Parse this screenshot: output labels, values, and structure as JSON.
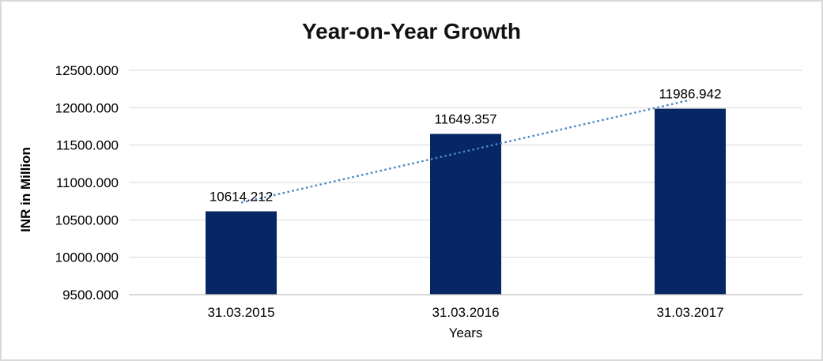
{
  "window": {
    "background": "#ffffff",
    "border_color": "#d9d9d9"
  },
  "chart_data": {
    "type": "bar",
    "title": "Year-on-Year Growth",
    "categories": [
      "31.03.2015",
      "31.03.2016",
      "31.03.2017"
    ],
    "values": [
      10614.212,
      11649.357,
      11986.942
    ],
    "data_labels": [
      "10614.212",
      "11649.357",
      "11986.942"
    ],
    "xlabel": "Years",
    "ylabel": "INR in Million",
    "ylim": [
      9500,
      12500
    ],
    "ytick_step": 500,
    "ytick_labels": [
      "9500.000",
      "10000.000",
      "10500.000",
      "11000.000",
      "11500.000",
      "12000.000",
      "12500.000"
    ],
    "grid": true,
    "legend": "none",
    "trendline": {
      "type": "linear",
      "style": "dotted"
    },
    "colors": {
      "bar": "#062664",
      "gridline": "#d9d9d9",
      "axis_line": "#bfbfbf",
      "trendline": "#4e86c6",
      "text": "#000000"
    }
  }
}
